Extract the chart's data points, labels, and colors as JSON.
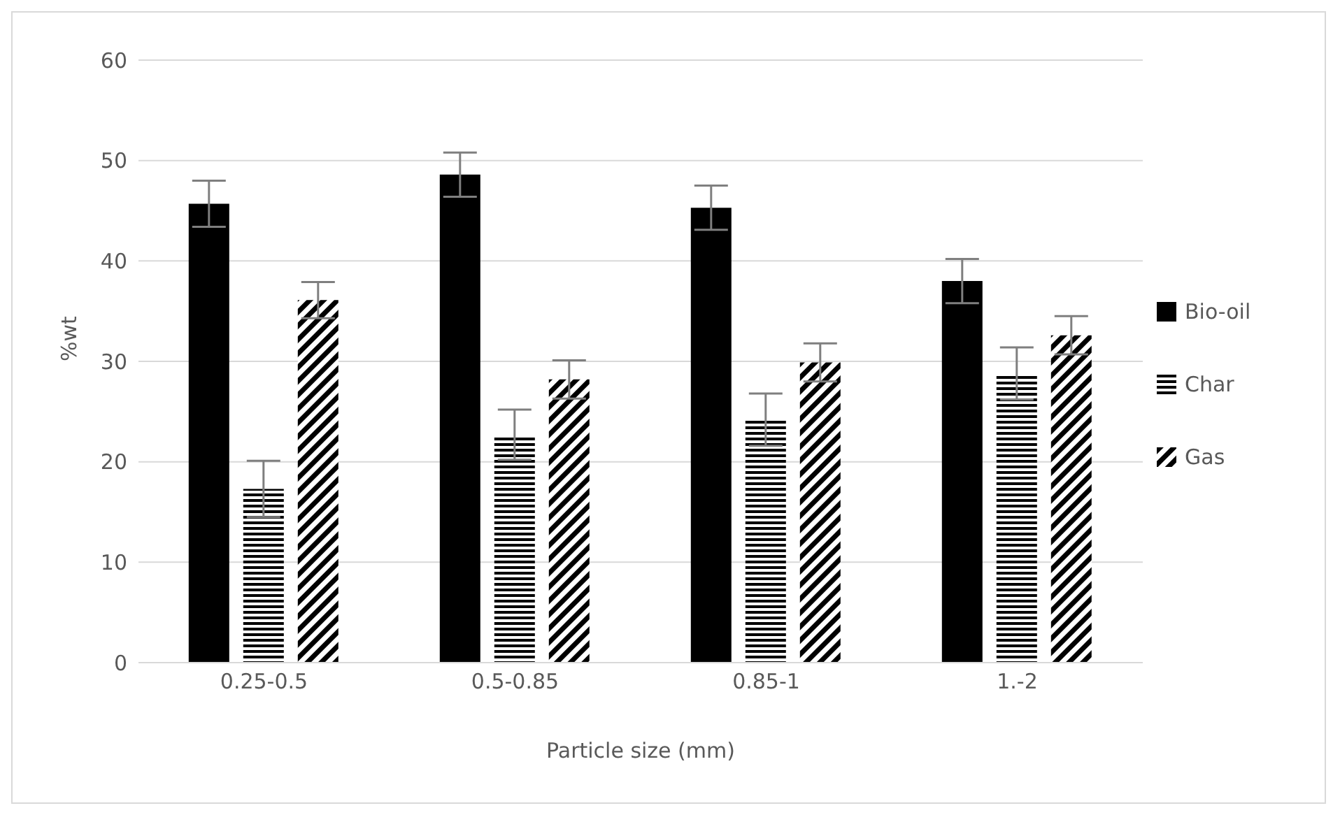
{
  "chart_data": {
    "type": "bar",
    "xlabel": "Particle size (mm)",
    "ylabel": "%wt",
    "categories": [
      "0.25-0.5",
      "0.5-0.85",
      "0.85-1",
      "1.-2"
    ],
    "series": [
      {
        "name": "Bio-oil",
        "color": "#000000",
        "values": [
          45.7,
          48.6,
          45.3,
          38.0
        ],
        "errors": [
          2.3,
          2.2,
          2.2,
          2.2
        ]
      },
      {
        "name": "Char",
        "color": "#000000",
        "values": [
          17.3,
          22.7,
          24.2,
          28.8
        ],
        "errors": [
          2.8,
          2.5,
          2.6,
          2.6
        ]
      },
      {
        "name": "Gas",
        "color": "#000000",
        "values": [
          36.1,
          28.2,
          29.9,
          32.6
        ],
        "errors": [
          1.8,
          1.9,
          1.9,
          1.9
        ]
      }
    ],
    "ylim": [
      0,
      60
    ],
    "yticks": [
      0,
      10,
      20,
      30,
      40,
      50,
      60
    ],
    "grid": "y",
    "legend": "right"
  }
}
